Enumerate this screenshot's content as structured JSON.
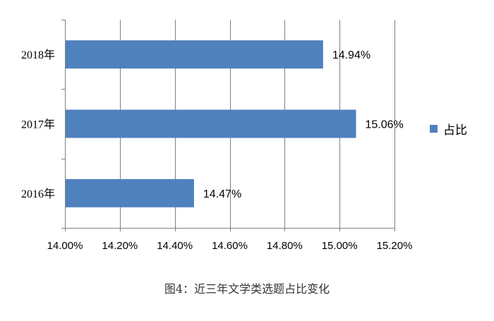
{
  "caption": "图4：近三年文学类选题占比变化",
  "colors": {
    "bar": "#4f81bd",
    "grid": "#808080",
    "axis": "#808080"
  },
  "chart_data": {
    "type": "bar",
    "orientation": "horizontal",
    "categories": [
      "2016年",
      "2017年",
      "2018年"
    ],
    "series": [
      {
        "name": "占比",
        "values": [
          14.47,
          15.06,
          14.94
        ],
        "labels": [
          "14.47%",
          "15.06%",
          "14.94%"
        ]
      }
    ],
    "xlim": [
      14.0,
      15.2
    ],
    "xticks": [
      14.0,
      14.2,
      14.4,
      14.6,
      14.8,
      15.0,
      15.2
    ],
    "xtick_labels": [
      "14.00%",
      "14.20%",
      "14.40%",
      "14.60%",
      "14.80%",
      "15.00%",
      "15.20%"
    ],
    "grid": true,
    "legend": "right"
  }
}
